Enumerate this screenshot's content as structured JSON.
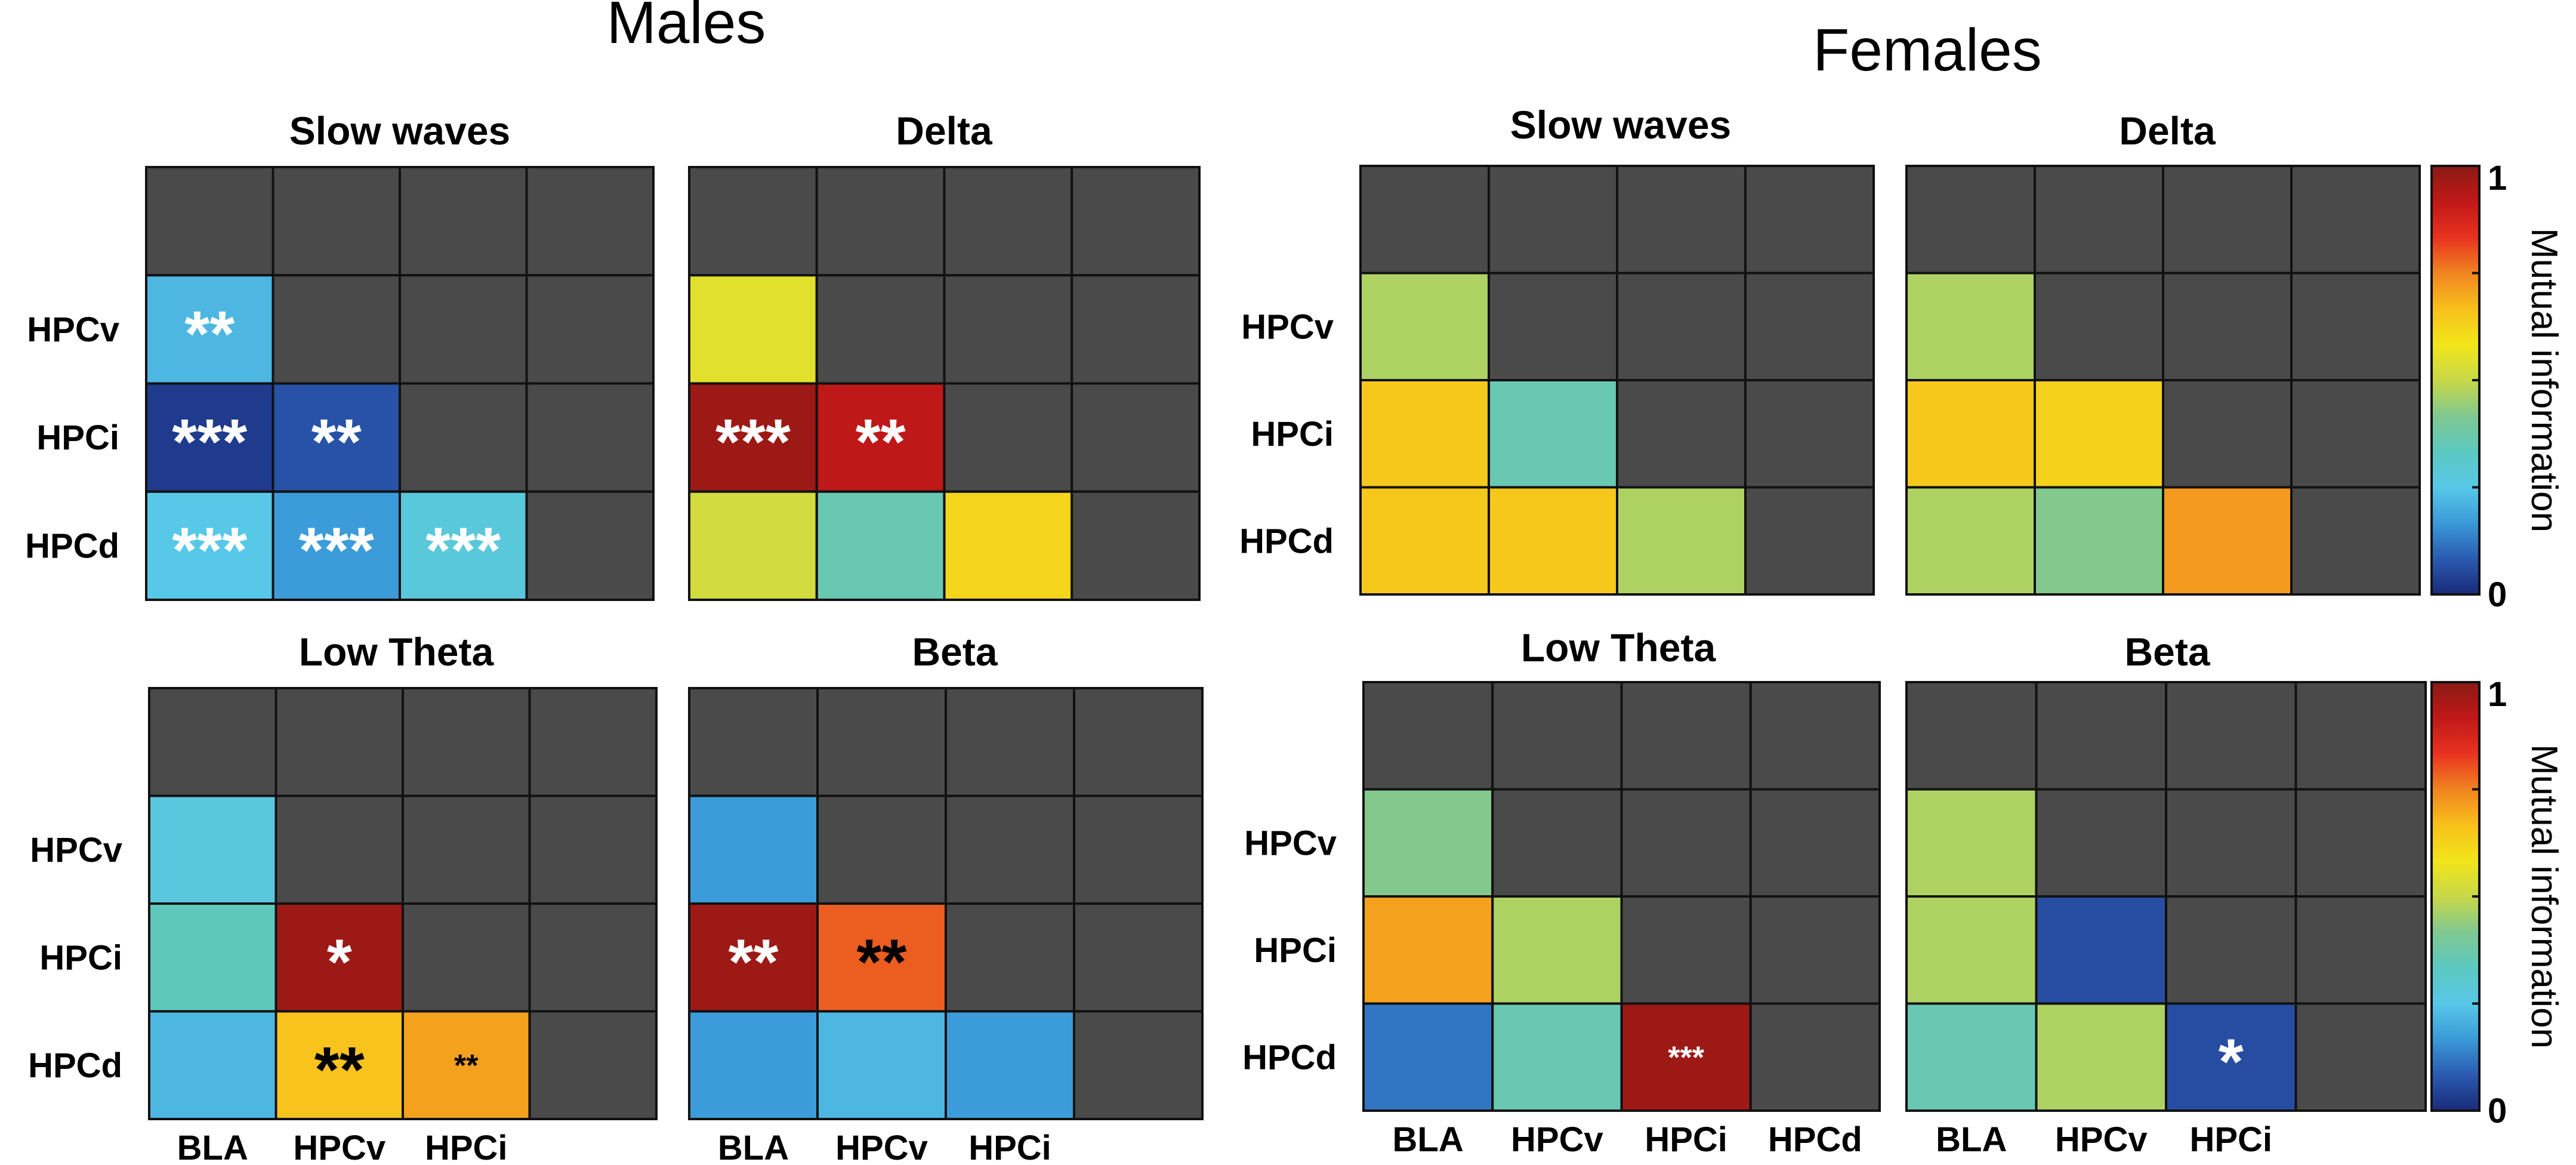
{
  "groups": [
    {
      "title": "Males",
      "panels": [
        {
          "title": "Slow waves",
          "row_labels": [
            "",
            "HPCv",
            "HPCi",
            "HPCd"
          ],
          "col_labels": [],
          "cells": [
            [
              null,
              null,
              null,
              null
            ],
            [
              0.22,
              null,
              null,
              null
            ],
            [
              0.03,
              0.07,
              null,
              null
            ],
            [
              0.25,
              0.17,
              0.28,
              null
            ]
          ],
          "stars": [
            [
              "",
              "",
              "",
              ""
            ],
            [
              "**",
              "",
              "",
              ""
            ],
            [
              "***",
              "**",
              "",
              ""
            ],
            [
              "***",
              "***",
              "***",
              ""
            ]
          ],
          "star_colors": [
            [
              "",
              "",
              "",
              ""
            ],
            [
              "#ffffff",
              "",
              "",
              ""
            ],
            [
              "#ffffff",
              "#ffffff",
              "",
              ""
            ],
            [
              "#ffffff",
              "#ffffff",
              "#ffffff",
              ""
            ]
          ]
        },
        {
          "title": "Delta",
          "row_labels": [],
          "col_labels": [],
          "cells": [
            [
              null,
              null,
              null,
              null
            ],
            [
              0.55,
              null,
              null,
              null
            ],
            [
              0.97,
              0.92,
              null,
              null
            ],
            [
              0.52,
              0.36,
              0.62,
              null
            ]
          ],
          "stars": [
            [
              "",
              "",
              "",
              ""
            ],
            [
              "",
              "",
              "",
              ""
            ],
            [
              "***",
              "**",
              "",
              ""
            ],
            [
              "",
              "",
              "",
              ""
            ]
          ],
          "star_colors": [
            [
              "",
              "",
              "",
              ""
            ],
            [
              "",
              "",
              "",
              ""
            ],
            [
              "#ffffff",
              "#ffffff",
              "",
              ""
            ],
            [
              "",
              "",
              "",
              ""
            ]
          ]
        },
        {
          "title": "Low Theta",
          "row_labels": [
            "",
            "HPCv",
            "HPCi",
            "HPCd"
          ],
          "col_labels": [
            "BLA",
            "HPCv",
            "HPCi"
          ],
          "cells": [
            [
              null,
              null,
              null,
              null
            ],
            [
              0.27,
              null,
              null,
              null
            ],
            [
              0.34,
              0.97,
              null,
              null
            ],
            [
              0.22,
              0.66,
              0.71,
              null
            ]
          ],
          "stars": [
            [
              "",
              "",
              "",
              ""
            ],
            [
              "",
              "",
              "",
              ""
            ],
            [
              "",
              "*",
              "",
              ""
            ],
            [
              "",
              "**",
              "**",
              ""
            ]
          ],
          "star_colors": [
            [
              "",
              "",
              "",
              ""
            ],
            [
              "",
              "",
              "",
              ""
            ],
            [
              "",
              "#ffffff",
              "",
              ""
            ],
            [
              "",
              "#000000",
              "#000000",
              ""
            ]
          ]
        },
        {
          "title": "Beta",
          "row_labels": [],
          "col_labels": [
            "BLA",
            "HPCv",
            "HPCi"
          ],
          "cells": [
            [
              null,
              null,
              null,
              null
            ],
            [
              0.17,
              null,
              null,
              null
            ],
            [
              0.97,
              0.79,
              null,
              null
            ],
            [
              0.17,
              0.22,
              0.17,
              null
            ]
          ],
          "stars": [
            [
              "",
              "",
              "",
              ""
            ],
            [
              "",
              "",
              "",
              ""
            ],
            [
              "**",
              "**",
              "",
              ""
            ],
            [
              "",
              "",
              "",
              ""
            ]
          ],
          "star_colors": [
            [
              "",
              "",
              "",
              ""
            ],
            [
              "",
              "",
              "",
              ""
            ],
            [
              "#ffffff",
              "#000000",
              "",
              ""
            ],
            [
              "",
              "",
              "",
              ""
            ]
          ]
        }
      ]
    },
    {
      "title": "Females",
      "panels": [
        {
          "title": "Slow waves",
          "row_labels": [
            "",
            "HPCv",
            "HPCi",
            "HPCd"
          ],
          "col_labels": [],
          "cells": [
            [
              null,
              null,
              null,
              null
            ],
            [
              0.47,
              null,
              null,
              null
            ],
            [
              0.65,
              0.36,
              null,
              null
            ],
            [
              0.65,
              0.65,
              0.47,
              null
            ]
          ],
          "stars": [
            [
              "",
              "",
              "",
              ""
            ],
            [
              "",
              "",
              "",
              ""
            ],
            [
              "",
              "",
              "",
              ""
            ],
            [
              "",
              "",
              "",
              ""
            ]
          ],
          "star_colors": [
            [
              "",
              "",
              "",
              ""
            ],
            [
              "",
              "",
              "",
              ""
            ],
            [
              "",
              "",
              "",
              ""
            ],
            [
              "",
              "",
              "",
              ""
            ]
          ]
        },
        {
          "title": "Delta",
          "row_labels": [],
          "col_labels": [],
          "cells": [
            [
              null,
              null,
              null,
              null
            ],
            [
              0.47,
              null,
              null,
              null
            ],
            [
              0.65,
              0.63,
              null,
              null
            ],
            [
              0.47,
              0.42,
              0.72,
              null
            ]
          ],
          "stars": [
            [
              "",
              "",
              "",
              ""
            ],
            [
              "",
              "",
              "",
              ""
            ],
            [
              "",
              "",
              "",
              ""
            ],
            [
              "",
              "",
              "",
              ""
            ]
          ],
          "star_colors": [
            [
              "",
              "",
              "",
              ""
            ],
            [
              "",
              "",
              "",
              ""
            ],
            [
              "",
              "",
              "",
              ""
            ],
            [
              "",
              "",
              "",
              ""
            ]
          ]
        },
        {
          "title": "Low Theta",
          "row_labels": [
            "",
            "HPCv",
            "HPCi",
            "HPCd"
          ],
          "col_labels": [
            "BLA",
            "HPCv",
            "HPCi",
            "HPCd"
          ],
          "cells": [
            [
              null,
              null,
              null,
              null
            ],
            [
              0.42,
              null,
              null,
              null
            ],
            [
              0.71,
              0.47,
              null,
              null
            ],
            [
              0.12,
              0.36,
              0.97,
              null
            ]
          ],
          "stars": [
            [
              "",
              "",
              "",
              ""
            ],
            [
              "",
              "",
              "",
              ""
            ],
            [
              "",
              "",
              "",
              ""
            ],
            [
              "",
              "",
              "***",
              ""
            ]
          ],
          "star_colors": [
            [
              "",
              "",
              "",
              ""
            ],
            [
              "",
              "",
              "",
              ""
            ],
            [
              "",
              "",
              "",
              ""
            ],
            [
              "",
              "",
              "#ffffff",
              ""
            ]
          ]
        },
        {
          "title": "Beta",
          "row_labels": [],
          "col_labels": [
            "BLA",
            "HPCv",
            "HPCi"
          ],
          "cells": [
            [
              null,
              null,
              null,
              null
            ],
            [
              0.47,
              null,
              null,
              null
            ],
            [
              0.47,
              0.06,
              null,
              null
            ],
            [
              0.36,
              0.47,
              0.06,
              null
            ]
          ],
          "stars": [
            [
              "",
              "",
              "",
              ""
            ],
            [
              "",
              "",
              "",
              ""
            ],
            [
              "",
              "",
              "",
              ""
            ],
            [
              "",
              "",
              "*",
              ""
            ]
          ],
          "star_colors": [
            [
              "",
              "",
              "",
              ""
            ],
            [
              "",
              "",
              "",
              ""
            ],
            [
              "",
              "",
              "",
              ""
            ],
            [
              "",
              "",
              "#ffffff",
              ""
            ]
          ]
        }
      ]
    }
  ],
  "colorbar": {
    "title": "Mutual information",
    "min_label": "0",
    "max_label": "1",
    "range": [
      0,
      1
    ],
    "stops": [
      "#1a2a7a",
      "#2a5ab0",
      "#3a9ad8",
      "#58c8e8",
      "#5cc8c0",
      "#80c890",
      "#c8d848",
      "#f2e61a",
      "#f8c01c",
      "#f08420",
      "#e83220",
      "#c01818",
      "#8a1a14"
    ]
  },
  "colors": {
    "empty_cell": "#4a4a4a",
    "grid_line": "#111111"
  },
  "chart_data": [
    {
      "type": "heatmap",
      "title": "Slow waves",
      "group": "Males",
      "rows": [
        "",
        "HPCv",
        "HPCi",
        "HPCd"
      ],
      "columns": [
        "BLA",
        "HPCv",
        "HPCi",
        "HPCd"
      ],
      "values": [
        [
          null,
          null,
          null,
          null
        ],
        [
          0.22,
          null,
          null,
          null
        ],
        [
          0.03,
          0.07,
          null,
          null
        ],
        [
          0.25,
          0.17,
          0.28,
          null
        ]
      ]
    },
    {
      "type": "heatmap",
      "title": "Delta",
      "group": "Males",
      "rows": [
        "",
        "HPCv",
        "HPCi",
        "HPCd"
      ],
      "columns": [
        "BLA",
        "HPCv",
        "HPCi",
        "HPCd"
      ],
      "values": [
        [
          null,
          null,
          null,
          null
        ],
        [
          0.55,
          null,
          null,
          null
        ],
        [
          0.97,
          0.92,
          null,
          null
        ],
        [
          0.52,
          0.36,
          0.62,
          null
        ]
      ]
    },
    {
      "type": "heatmap",
      "title": "Low Theta",
      "group": "Males",
      "rows": [
        "",
        "HPCv",
        "HPCi",
        "HPCd"
      ],
      "columns": [
        "BLA",
        "HPCv",
        "HPCi",
        "HPCd"
      ],
      "values": [
        [
          null,
          null,
          null,
          null
        ],
        [
          0.27,
          null,
          null,
          null
        ],
        [
          0.34,
          0.97,
          null,
          null
        ],
        [
          0.22,
          0.66,
          0.71,
          null
        ]
      ]
    },
    {
      "type": "heatmap",
      "title": "Beta",
      "group": "Males",
      "rows": [
        "",
        "HPCv",
        "HPCi",
        "HPCd"
      ],
      "columns": [
        "BLA",
        "HPCv",
        "HPCi",
        "HPCd"
      ],
      "values": [
        [
          null,
          null,
          null,
          null
        ],
        [
          0.17,
          null,
          null,
          null
        ],
        [
          0.97,
          0.79,
          null,
          null
        ],
        [
          0.17,
          0.22,
          0.17,
          null
        ]
      ]
    },
    {
      "type": "heatmap",
      "title": "Slow waves",
      "group": "Females",
      "rows": [
        "",
        "HPCv",
        "HPCi",
        "HPCd"
      ],
      "columns": [
        "BLA",
        "HPCv",
        "HPCi",
        "HPCd"
      ],
      "values": [
        [
          null,
          null,
          null,
          null
        ],
        [
          0.47,
          null,
          null,
          null
        ],
        [
          0.65,
          0.36,
          null,
          null
        ],
        [
          0.65,
          0.65,
          0.47,
          null
        ]
      ]
    },
    {
      "type": "heatmap",
      "title": "Delta",
      "group": "Females",
      "rows": [
        "",
        "HPCv",
        "HPCi",
        "HPCd"
      ],
      "columns": [
        "BLA",
        "HPCv",
        "HPCi",
        "HPCd"
      ],
      "values": [
        [
          null,
          null,
          null,
          null
        ],
        [
          0.47,
          null,
          null,
          null
        ],
        [
          0.65,
          0.63,
          null,
          null
        ],
        [
          0.47,
          0.42,
          0.72,
          null
        ]
      ]
    },
    {
      "type": "heatmap",
      "title": "Low Theta",
      "group": "Females",
      "rows": [
        "",
        "HPCv",
        "HPCi",
        "HPCd"
      ],
      "columns": [
        "BLA",
        "HPCv",
        "HPCi",
        "HPCd"
      ],
      "values": [
        [
          null,
          null,
          null,
          null
        ],
        [
          0.42,
          null,
          null,
          null
        ],
        [
          0.71,
          0.47,
          null,
          null
        ],
        [
          0.12,
          0.36,
          0.97,
          null
        ]
      ]
    },
    {
      "type": "heatmap",
      "title": "Beta",
      "group": "Females",
      "rows": [
        "",
        "HPCv",
        "HPCi",
        "HPCd"
      ],
      "columns": [
        "BLA",
        "HPCv",
        "HPCi",
        "HPCd"
      ],
      "values": [
        [
          null,
          null,
          null,
          null
        ],
        [
          0.47,
          null,
          null,
          null
        ],
        [
          0.47,
          0.06,
          null,
          null
        ],
        [
          0.36,
          0.47,
          0.06,
          null
        ]
      ]
    }
  ]
}
